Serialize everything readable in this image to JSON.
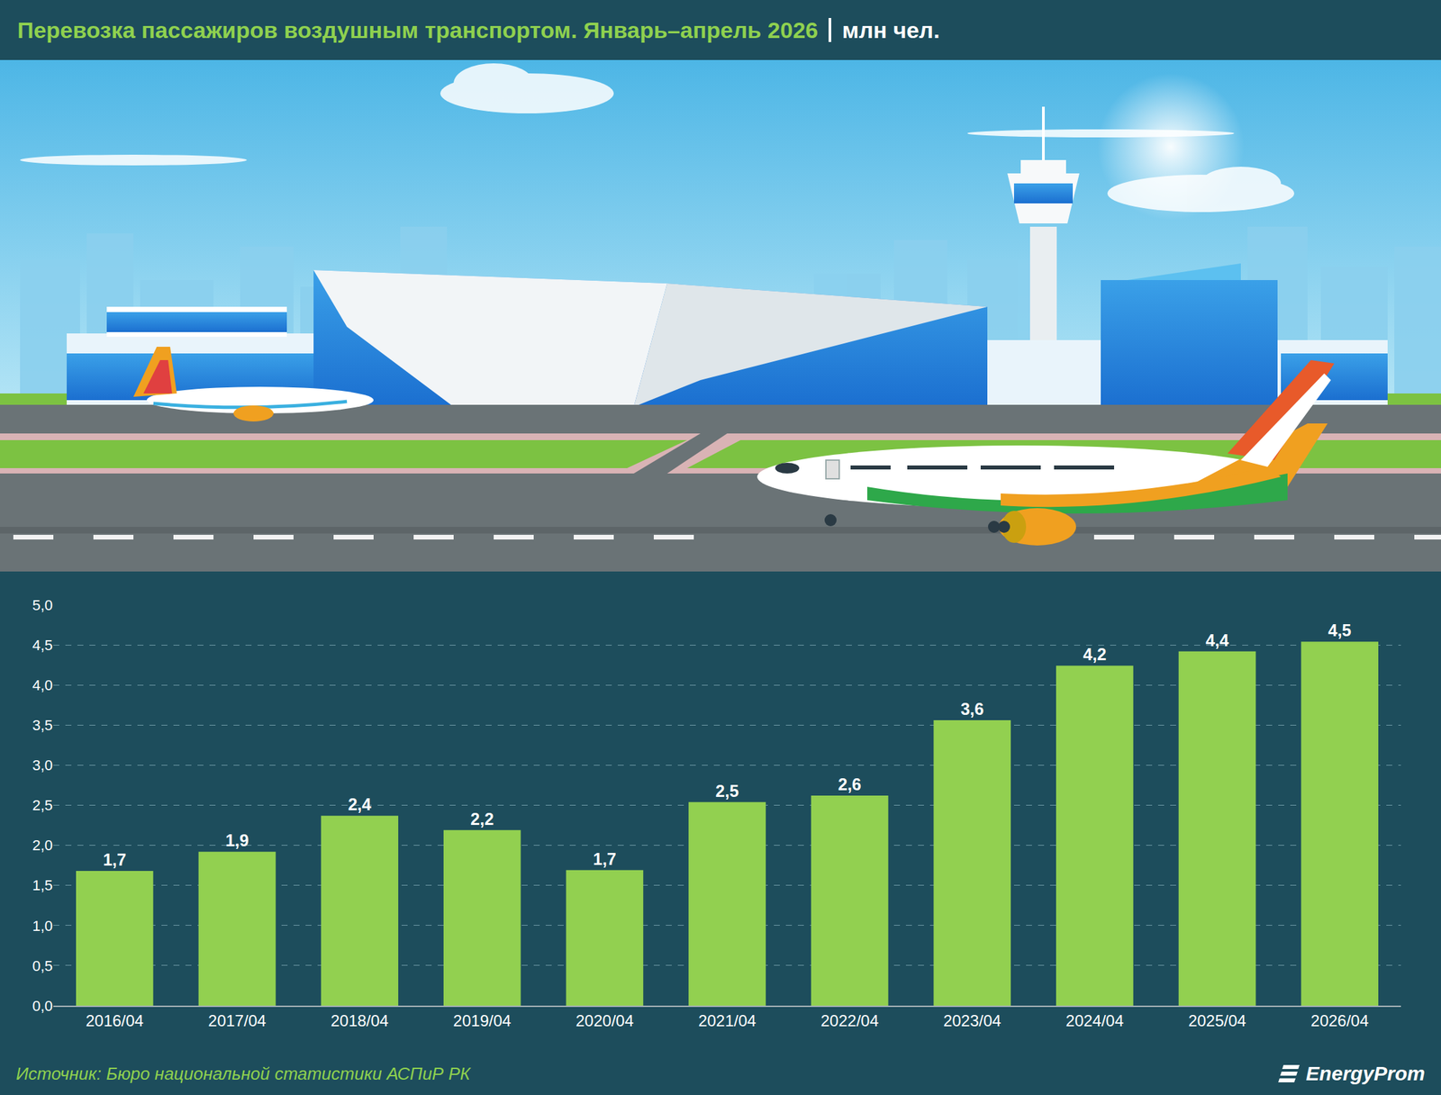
{
  "header": {
    "title": "Перевозка пассажиров воздушным транспортом. Январь–апрель 2026",
    "subtitle": "млн чел."
  },
  "chart_data": {
    "type": "bar",
    "categories": [
      "2016/04",
      "2017/04",
      "2018/04",
      "2019/04",
      "2020/04",
      "2021/04",
      "2022/04",
      "2023/04",
      "2024/04",
      "2025/04",
      "2026/04"
    ],
    "values": [
      1.68,
      1.92,
      2.37,
      2.19,
      1.69,
      2.54,
      2.62,
      3.56,
      4.24,
      4.42,
      4.54
    ],
    "value_labels": [
      "1,7",
      "1,9",
      "2,4",
      "2,2",
      "1,7",
      "2,5",
      "2,6",
      "3,6",
      "4,2",
      "4,4",
      "4,5"
    ],
    "color": "#92d050",
    "ylim": [
      0,
      5
    ],
    "yticks": [
      {
        "value": 0,
        "label": "0,0"
      },
      {
        "value": 0.5,
        "label": "0,5"
      },
      {
        "value": 1,
        "label": "1,0"
      },
      {
        "value": 1.5,
        "label": "1,5"
      },
      {
        "value": 2,
        "label": "2,0"
      },
      {
        "value": 2.5,
        "label": "2,5"
      },
      {
        "value": 3,
        "label": "3,0"
      },
      {
        "value": 3.5,
        "label": "3,5"
      },
      {
        "value": 4,
        "label": "4,0"
      },
      {
        "value": 4.5,
        "label": "4,5"
      },
      {
        "value": 5,
        "label": "5,0"
      }
    ],
    "grid": true,
    "data_labels": true
  },
  "footer": {
    "source": "Источник: Бюро национальной статистики АСПиР РК",
    "brand": "EnergyProm"
  }
}
